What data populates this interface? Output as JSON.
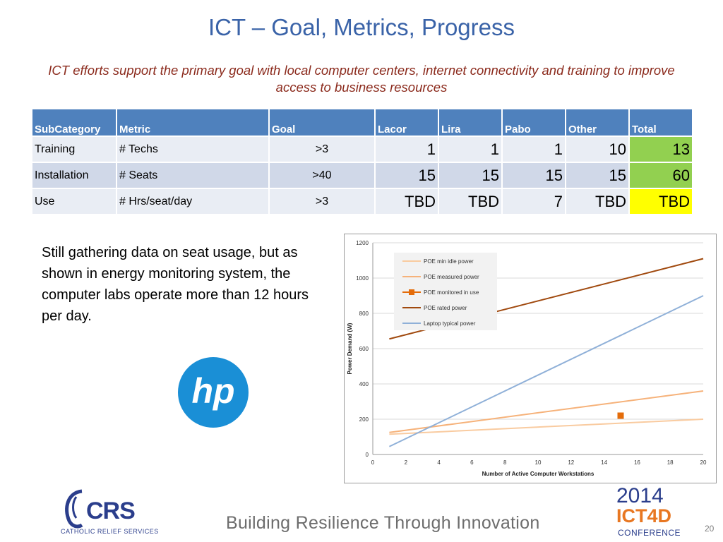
{
  "title": "ICT – Goal, Metrics, Progress",
  "subtitle": "ICT efforts support the primary goal with local computer centers, internet connectivity and training to improve access to business resources",
  "table": {
    "headers": [
      "SubCategory",
      "Metric",
      "Goal",
      "Lacor",
      "Lira",
      "Pabo",
      "Other",
      "Total"
    ],
    "rows": [
      {
        "subcategory": "Training",
        "metric": "# Techs",
        "goal": ">3",
        "lacor": "1",
        "lira": "1",
        "pabo": "1",
        "other": "10",
        "total": "13",
        "total_color": "#92d050"
      },
      {
        "subcategory": "Installation",
        "metric": "# Seats",
        "goal": ">40",
        "lacor": "15",
        "lira": "15",
        "pabo": "15",
        "other": "15",
        "total": "60",
        "total_color": "#92d050"
      },
      {
        "subcategory": "Use",
        "metric": "# Hrs/seat/day",
        "goal": ">3",
        "lacor": "TBD",
        "lira": "TBD",
        "pabo": "7",
        "other": "TBD",
        "total": "TBD",
        "total_color": "#ffff00"
      }
    ]
  },
  "note": "Still gathering data on seat usage, but as shown in energy monitoring system, the computer labs operate more than 12 hours per day.",
  "logos": {
    "hp": "hp",
    "crs": "CRS",
    "crs_sub": "CATHOLIC RELIEF SERVICES",
    "event_year": "2014",
    "event_name": "ICT4D",
    "event_sub": "CONFERENCE"
  },
  "footer": "Building Resilience Through Innovation",
  "page_number": "20",
  "chart_data": {
    "type": "line",
    "xlabel": "Number of Active Computer Workstations",
    "ylabel": "Power Demand (W)",
    "xlim": [
      0,
      20
    ],
    "ylim": [
      0,
      1200
    ],
    "xticks": [
      0,
      2,
      4,
      6,
      8,
      10,
      12,
      14,
      16,
      18,
      20
    ],
    "yticks": [
      0,
      200,
      400,
      600,
      800,
      1000,
      1200
    ],
    "grid": "horizontal",
    "legend": "top-left",
    "series": [
      {
        "name": "POE min idle power",
        "type": "line",
        "color": "#f9cba0",
        "x": [
          1,
          20
        ],
        "y": [
          115,
          200
        ]
      },
      {
        "name": "POE measured power",
        "type": "line",
        "color": "#f6b27a",
        "x": [
          1,
          20
        ],
        "y": [
          125,
          360
        ]
      },
      {
        "name": "POE monitored in use",
        "type": "marker",
        "color": "#e46c0a",
        "x": [
          15
        ],
        "y": [
          220
        ]
      },
      {
        "name": "POE rated power",
        "type": "line",
        "color": "#a0490e",
        "x": [
          1,
          20
        ],
        "y": [
          655,
          1110
        ]
      },
      {
        "name": "Laptop typical power",
        "type": "line",
        "color": "#8fb0d8",
        "x": [
          1,
          20
        ],
        "y": [
          45,
          900
        ]
      }
    ]
  }
}
